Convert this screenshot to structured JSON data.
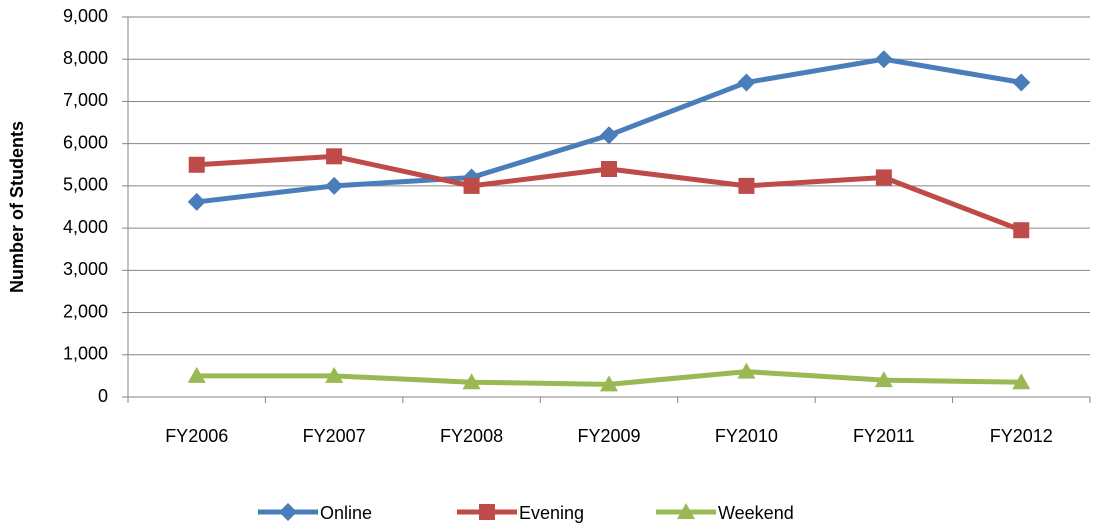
{
  "chart_data": {
    "type": "line",
    "y_label": "Number of Students",
    "categories": [
      "FY2006",
      "FY2007",
      "FY2008",
      "FY2009",
      "FY2010",
      "FY2011",
      "FY2012"
    ],
    "series": [
      {
        "name": "Online",
        "color": "#4a7ebb",
        "marker": "diamond",
        "values": [
          4620,
          5000,
          5200,
          6200,
          7450,
          8000,
          7450
        ]
      },
      {
        "name": "Evening",
        "color": "#be4b48",
        "marker": "square",
        "values": [
          5500,
          5700,
          5000,
          5400,
          5000,
          5200,
          3950
        ]
      },
      {
        "name": "Weekend",
        "color": "#98b954",
        "marker": "triangle",
        "values": [
          500,
          500,
          350,
          300,
          600,
          400,
          350
        ]
      }
    ],
    "ylim": [
      0,
      9000
    ],
    "yticks": [
      0,
      {
        "value": 1000,
        "label": "1,000"
      },
      {
        "value": 2000,
        "label": "2,000"
      },
      {
        "value": 3000,
        "label": "3,000"
      },
      {
        "value": 4000,
        "label": "4,000"
      },
      {
        "value": 5000,
        "label": "5,000"
      },
      {
        "value": 6000,
        "label": "6,000"
      },
      {
        "value": 7000,
        "label": "7,000"
      },
      {
        "value": 8000,
        "label": "8,000"
      },
      {
        "value": 9000,
        "label": "9,000"
      }
    ],
    "grid": true,
    "legend": "bottom"
  }
}
